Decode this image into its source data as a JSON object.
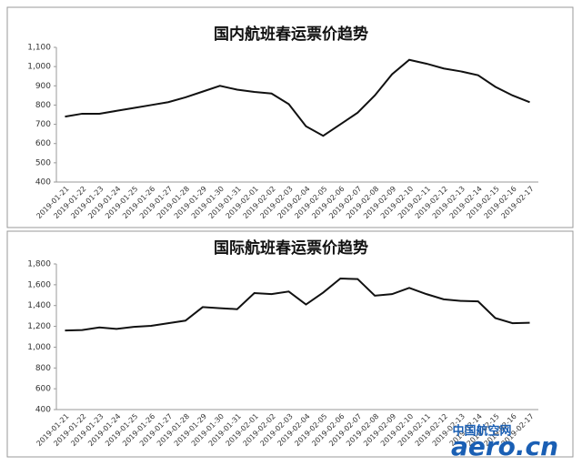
{
  "chart_data": [
    {
      "type": "line",
      "title": "国内航班春运票价趋势",
      "categories": [
        "2019-01-21",
        "2019-01-22",
        "2019-01-23",
        "2019-01-24",
        "2019-01-25",
        "2019-01-26",
        "2019-01-27",
        "2019-01-28",
        "2019-01-29",
        "2019-01-30",
        "2019-01-31",
        "2019-02-01",
        "2019-02-02",
        "2019-02-03",
        "2019-02-04",
        "2019-02-05",
        "2019-02-06",
        "2019-02-07",
        "2019-02-08",
        "2019-02-09",
        "2019-02-10",
        "2019-02-11",
        "2019-02-12",
        "2019-02-13",
        "2019-02-14",
        "2019-02-15",
        "2019-02-16",
        "2019-02-17"
      ],
      "values": [
        740,
        755,
        755,
        770,
        785,
        800,
        815,
        840,
        870,
        900,
        880,
        868,
        860,
        805,
        690,
        640,
        700,
        760,
        850,
        960,
        1035,
        1015,
        990,
        975,
        955,
        895,
        850,
        815
      ],
      "color": "#111111",
      "ylim": [
        400,
        1100
      ],
      "yticks": [
        400,
        500,
        600,
        700,
        800,
        900,
        {
          "value": 1000,
          "label": "1,000"
        },
        {
          "value": 1100,
          "label": "1,100"
        }
      ]
    },
    {
      "type": "line",
      "title": "国际航班春运票价趋势",
      "categories": [
        "2019-01-21",
        "2019-01-22",
        "2019-01-23",
        "2019-01-24",
        "2019-01-25",
        "2019-01-26",
        "2019-01-27",
        "2019-01-28",
        "2019-01-29",
        "2019-01-30",
        "2019-01-31",
        "2019-02-01",
        "2019-02-02",
        "2019-02-03",
        "2019-02-04",
        "2019-02-05",
        "2019-02-06",
        "2019-02-07",
        "2019-02-08",
        "2019-02-09",
        "2019-02-10",
        "2019-02-11",
        "2019-02-12",
        "2019-02-13",
        "2019-02-14",
        "2019-02-15",
        "2019-02-16",
        "2019-02-17"
      ],
      "values": [
        1160,
        1165,
        1190,
        1175,
        1195,
        1205,
        1230,
        1255,
        1385,
        1375,
        1365,
        1520,
        1510,
        1535,
        1410,
        1525,
        1660,
        1655,
        1495,
        1510,
        1570,
        1510,
        1460,
        1445,
        1440,
        1280,
        1230,
        1235
      ],
      "color": "#111111",
      "ylim": [
        400,
        1800
      ],
      "yticks": [
        400,
        600,
        800,
        {
          "value": 1000,
          "label": "1,000"
        },
        {
          "value": 1200,
          "label": "1,200"
        },
        {
          "value": 1400,
          "label": "1,400"
        },
        {
          "value": 1600,
          "label": "1,600"
        },
        {
          "value": 1800,
          "label": "1,800"
        }
      ]
    }
  ],
  "watermark": {
    "cn": "中国航空网",
    "en": "aero.cn"
  }
}
